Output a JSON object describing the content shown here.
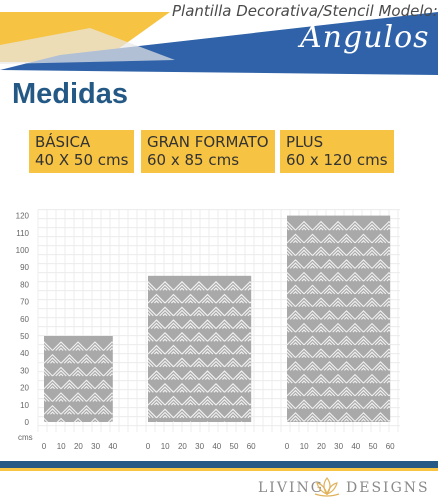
{
  "header": {
    "subtitle": "Plantilla Decorativa/Stencil Modelo:",
    "model_name": "Angulos"
  },
  "title": "Medidas",
  "sizes": [
    {
      "name": "BÁSICA",
      "dims": "40 X 50 cms"
    },
    {
      "name": "GRAN FORMATO",
      "dims": "60 x 85 cms"
    },
    {
      "name": "PLUS",
      "dims": "60 x 120 cms"
    }
  ],
  "chart_data": {
    "type": "bar",
    "categories": [
      "BÁSICA",
      "GRAN FORMATO",
      "PLUS"
    ],
    "unit_label": "cms",
    "y_ticks": [
      0,
      10,
      20,
      30,
      40,
      50,
      60,
      70,
      80,
      90,
      100,
      110,
      120
    ],
    "ylim": [
      0,
      120
    ],
    "series": [
      {
        "width": 40,
        "height": 50,
        "x_ticks": [
          0,
          10,
          20,
          30,
          40
        ]
      },
      {
        "width": 60,
        "height": 85,
        "x_ticks": [
          0,
          10,
          20,
          30,
          40,
          50,
          60
        ]
      },
      {
        "width": 60,
        "height": 120,
        "x_ticks": [
          0,
          10,
          20,
          30,
          40,
          50,
          60
        ]
      }
    ]
  },
  "footer": {
    "brand_left": "LIVING",
    "brand_right": "DESIGNS"
  },
  "colors": {
    "blue": "#245985",
    "yellow": "#f6c343",
    "gray": "#a9a9a9"
  }
}
